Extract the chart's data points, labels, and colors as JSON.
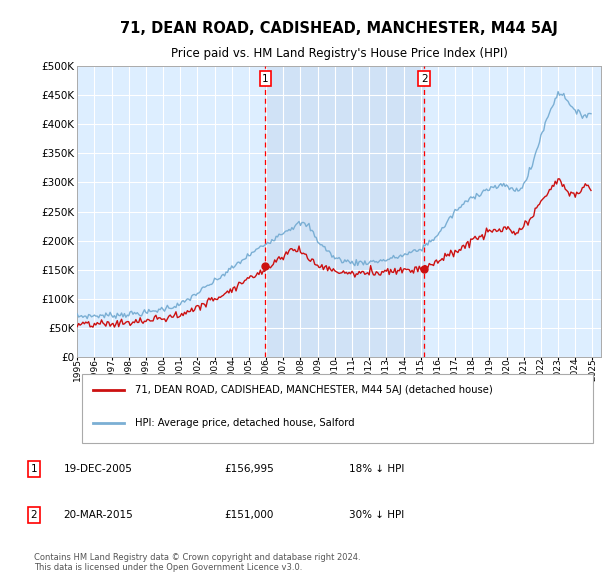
{
  "title": "71, DEAN ROAD, CADISHEAD, MANCHESTER, M44 5AJ",
  "subtitle": "Price paid vs. HM Land Registry's House Price Index (HPI)",
  "background_color": "#ffffff",
  "plot_bg_color": "#ddeeff",
  "shade_color": "#c8dcf0",
  "grid_color": "#ffffff",
  "hpi_color": "#7bafd4",
  "price_color": "#cc1111",
  "ylim": [
    0,
    500000
  ],
  "yticks": [
    0,
    50000,
    100000,
    150000,
    200000,
    250000,
    300000,
    350000,
    400000,
    450000,
    500000
  ],
  "ytick_labels": [
    "£0",
    "£50K",
    "£100K",
    "£150K",
    "£200K",
    "£250K",
    "£300K",
    "£350K",
    "£400K",
    "£450K",
    "£500K"
  ],
  "xtick_years": [
    1995,
    1996,
    1997,
    1998,
    1999,
    2000,
    2001,
    2002,
    2003,
    2004,
    2005,
    2006,
    2007,
    2008,
    2009,
    2010,
    2011,
    2012,
    2013,
    2014,
    2015,
    2016,
    2017,
    2018,
    2019,
    2020,
    2021,
    2022,
    2023,
    2024,
    2025
  ],
  "xmin": 1995,
  "xmax": 2025.5,
  "sale1_year": 2005.96,
  "sale1_price": 156995,
  "sale2_year": 2015.21,
  "sale2_price": 151000,
  "legend_line1": "71, DEAN ROAD, CADISHEAD, MANCHESTER, M44 5AJ (detached house)",
  "legend_line2": "HPI: Average price, detached house, Salford",
  "row1_date": "19-DEC-2005",
  "row1_price": "£156,995",
  "row1_hpi": "18% ↓ HPI",
  "row2_date": "20-MAR-2015",
  "row2_price": "£151,000",
  "row2_hpi": "30% ↓ HPI",
  "footer": "Contains HM Land Registry data © Crown copyright and database right 2024.\nThis data is licensed under the Open Government Licence v3.0."
}
